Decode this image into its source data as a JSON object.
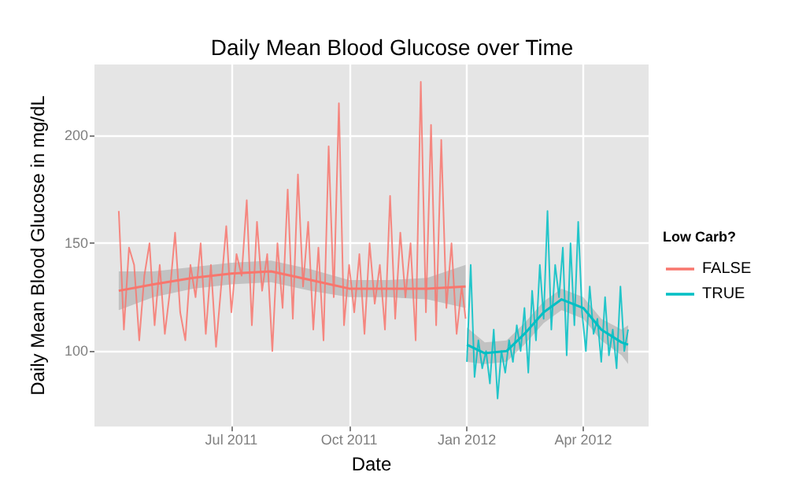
{
  "chart_data": {
    "type": "line",
    "title": "Daily Mean Blood Glucose over Time",
    "xlabel": "Date",
    "ylabel": "Daily Mean Blood Glucose in mg/dL",
    "legend_title": "Low Carb?",
    "legend": "right",
    "grid": true,
    "marker": "none",
    "line_style": "solid",
    "xlim": [
      "2011-03-16",
      "2012-05-22"
    ],
    "xticks": [
      {
        "value": "2011-07-01",
        "label": "Jul 2011"
      },
      {
        "value": "2011-10-01",
        "label": "Oct 2011"
      },
      {
        "value": "2012-01-01",
        "label": "Jan 2012"
      },
      {
        "value": "2012-04-01",
        "label": "Apr 2012"
      }
    ],
    "ylim": [
      65,
      233
    ],
    "yticks": [
      100,
      150,
      200
    ],
    "series": [
      {
        "name": "FALSE",
        "color": "#f8766d",
        "x": [
          "2011-04-04",
          "2011-04-08",
          "2011-04-12",
          "2011-04-16",
          "2011-04-20",
          "2011-04-24",
          "2011-04-28",
          "2011-05-02",
          "2011-05-06",
          "2011-05-10",
          "2011-05-14",
          "2011-05-18",
          "2011-05-22",
          "2011-05-26",
          "2011-05-30",
          "2011-06-03",
          "2011-06-07",
          "2011-06-11",
          "2011-06-15",
          "2011-06-19",
          "2011-06-23",
          "2011-06-27",
          "2011-07-01",
          "2011-07-05",
          "2011-07-09",
          "2011-07-13",
          "2011-07-17",
          "2011-07-21",
          "2011-07-25",
          "2011-07-29",
          "2011-08-02",
          "2011-08-06",
          "2011-08-10",
          "2011-08-14",
          "2011-08-18",
          "2011-08-22",
          "2011-08-26",
          "2011-08-30",
          "2011-09-03",
          "2011-09-07",
          "2011-09-11",
          "2011-09-15",
          "2011-09-19",
          "2011-09-23",
          "2011-09-27",
          "2011-10-01",
          "2011-10-05",
          "2011-10-09",
          "2011-10-13",
          "2011-10-17",
          "2011-10-21",
          "2011-10-25",
          "2011-10-29",
          "2011-11-02",
          "2011-11-06",
          "2011-11-10",
          "2011-11-14",
          "2011-11-18",
          "2011-11-22",
          "2011-11-26",
          "2011-11-30",
          "2011-12-04",
          "2011-12-08",
          "2011-12-12",
          "2011-12-16",
          "2011-12-20",
          "2011-12-24",
          "2011-12-28",
          "2011-12-31"
        ],
        "values": [
          165,
          110,
          148,
          140,
          105,
          135,
          150,
          112,
          140,
          108,
          128,
          155,
          118,
          105,
          140,
          125,
          150,
          108,
          140,
          102,
          130,
          158,
          118,
          145,
          135,
          170,
          112,
          160,
          128,
          145,
          100,
          150,
          120,
          175,
          115,
          182,
          130,
          160,
          110,
          148,
          105,
          195,
          125,
          215,
          112,
          140,
          118,
          145,
          108,
          150,
          122,
          140,
          110,
          172,
          115,
          155,
          125,
          150,
          105,
          225,
          118,
          205,
          112,
          198,
          120,
          150,
          108,
          130,
          115
        ]
      },
      {
        "name": "TRUE",
        "color": "#00bfc4",
        "x": [
          "2012-01-01",
          "2012-01-04",
          "2012-01-07",
          "2012-01-10",
          "2012-01-13",
          "2012-01-16",
          "2012-01-19",
          "2012-01-22",
          "2012-01-25",
          "2012-01-28",
          "2012-01-31",
          "2012-02-03",
          "2012-02-06",
          "2012-02-09",
          "2012-02-12",
          "2012-02-15",
          "2012-02-18",
          "2012-02-21",
          "2012-02-24",
          "2012-02-27",
          "2012-03-01",
          "2012-03-04",
          "2012-03-07",
          "2012-03-10",
          "2012-03-13",
          "2012-03-16",
          "2012-03-19",
          "2012-03-22",
          "2012-03-25",
          "2012-03-28",
          "2012-03-31",
          "2012-04-03",
          "2012-04-06",
          "2012-04-09",
          "2012-04-12",
          "2012-04-15",
          "2012-04-18",
          "2012-04-21",
          "2012-04-24",
          "2012-04-27",
          "2012-04-30",
          "2012-05-03",
          "2012-05-06"
        ],
        "values": [
          95,
          140,
          88,
          105,
          92,
          100,
          85,
          110,
          78,
          100,
          90,
          105,
          95,
          112,
          100,
          120,
          90,
          128,
          105,
          140,
          115,
          165,
          110,
          140,
          125,
          148,
          98,
          150,
          112,
          160,
          118,
          100,
          130,
          108,
          115,
          95,
          125,
          98,
          110,
          92,
          130,
          100,
          110
        ]
      },
      {
        "color": "#f8766d",
        "x": [
          "2011-04-04",
          "2011-05-01",
          "2011-06-01",
          "2011-07-01",
          "2011-08-01",
          "2011-09-01",
          "2011-10-01",
          "2011-11-01",
          "2011-12-01",
          "2011-12-31"
        ],
        "values": [
          128,
          131,
          134,
          136,
          137,
          133,
          129,
          129,
          129,
          130
        ],
        "lower": [
          119,
          125,
          129,
          131,
          132,
          128,
          125,
          125,
          124,
          120
        ],
        "upper": [
          137,
          137,
          139,
          141,
          142,
          138,
          133,
          133,
          134,
          140
        ]
      },
      {
        "color": "#00bfc4",
        "x": [
          "2012-01-01",
          "2012-01-15",
          "2012-02-01",
          "2012-02-15",
          "2012-03-01",
          "2012-03-15",
          "2012-04-01",
          "2012-04-15",
          "2012-05-01",
          "2012-05-06"
        ],
        "values": [
          103,
          99,
          100,
          108,
          118,
          124,
          120,
          110,
          104,
          103
        ],
        "lower": [
          95,
          94,
          95,
          103,
          113,
          119,
          115,
          105,
          98,
          94
        ],
        "upper": [
          111,
          104,
          105,
          113,
          123,
          129,
          125,
          115,
          110,
          112
        ]
      }
    ]
  }
}
